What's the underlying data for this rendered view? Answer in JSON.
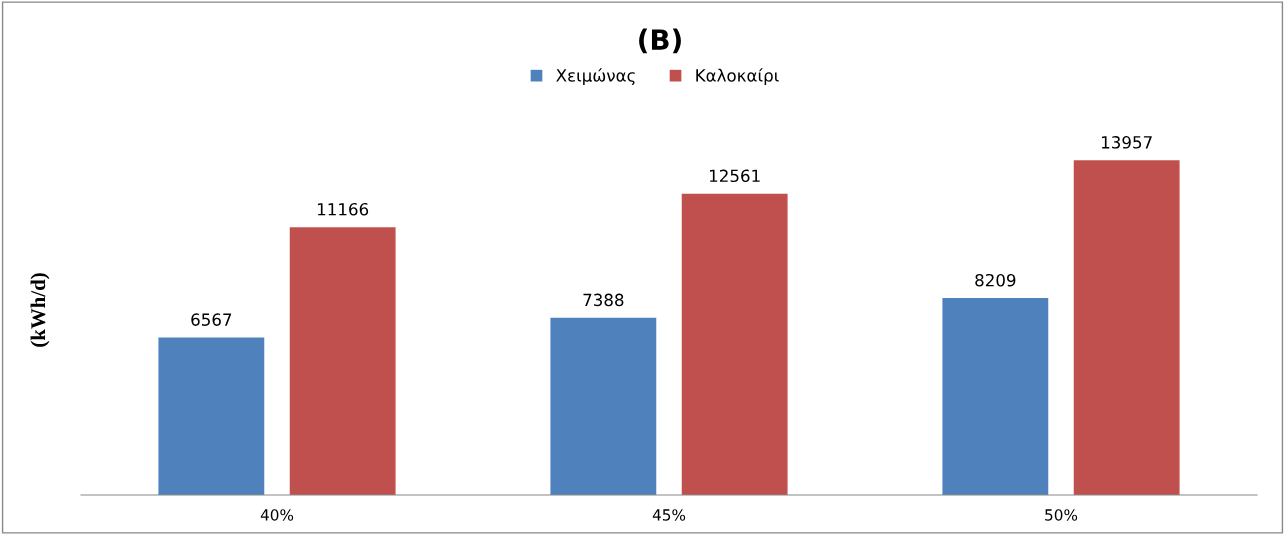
{
  "chart_data": {
    "type": "bar",
    "title": "(B)",
    "ylabel": "(kWh/d)",
    "categories": [
      "40%",
      "45%",
      "50%"
    ],
    "series": [
      {
        "name": "Χειμώνας",
        "color": "#4f81bd",
        "values": [
          6567,
          7388,
          8209
        ]
      },
      {
        "name": "Καλοκαίρι",
        "color": "#c0504d",
        "values": [
          11166,
          12561,
          13957
        ]
      }
    ],
    "data_labels": true,
    "legend": "top",
    "grid": false,
    "tick_labels": "x"
  }
}
